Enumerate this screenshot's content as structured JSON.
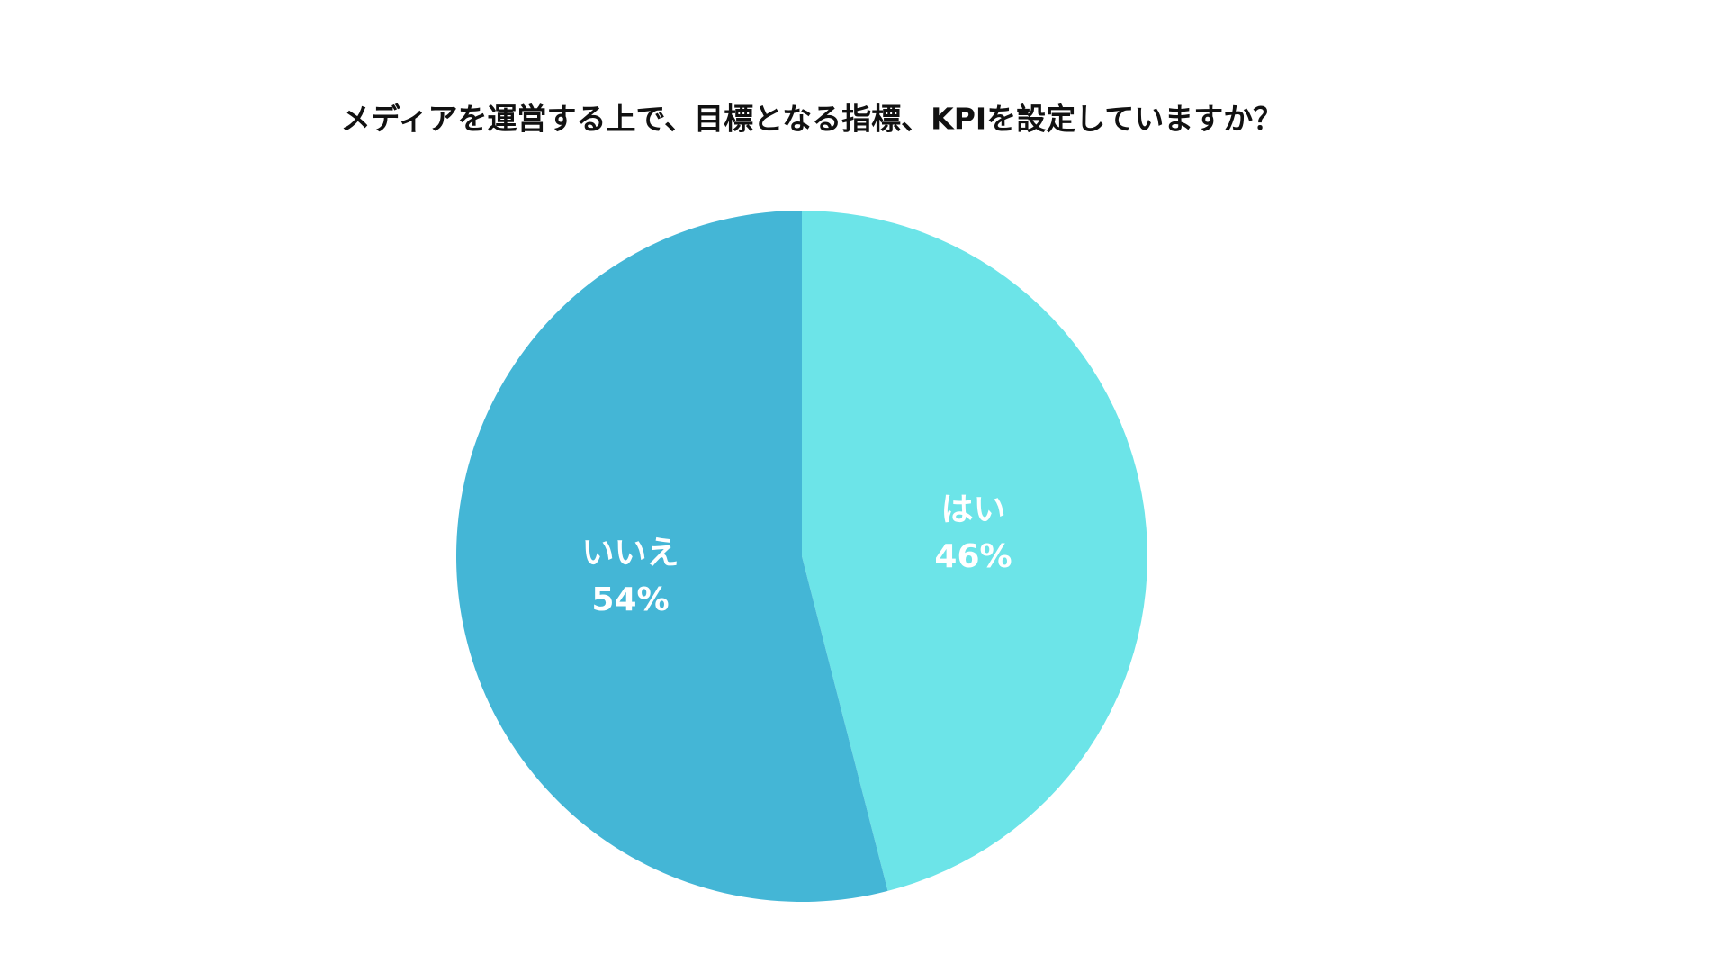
{
  "chart_data": {
    "type": "pie",
    "title": "メディアを運営する上で、目標となる指標、KPIを設定していますか？",
    "categories": [
      "はい",
      "いいえ"
    ],
    "values": [
      46,
      54
    ],
    "value_labels": [
      "46%",
      "54%"
    ],
    "colors": [
      "#6ce4e8",
      "#44b6d6"
    ]
  }
}
